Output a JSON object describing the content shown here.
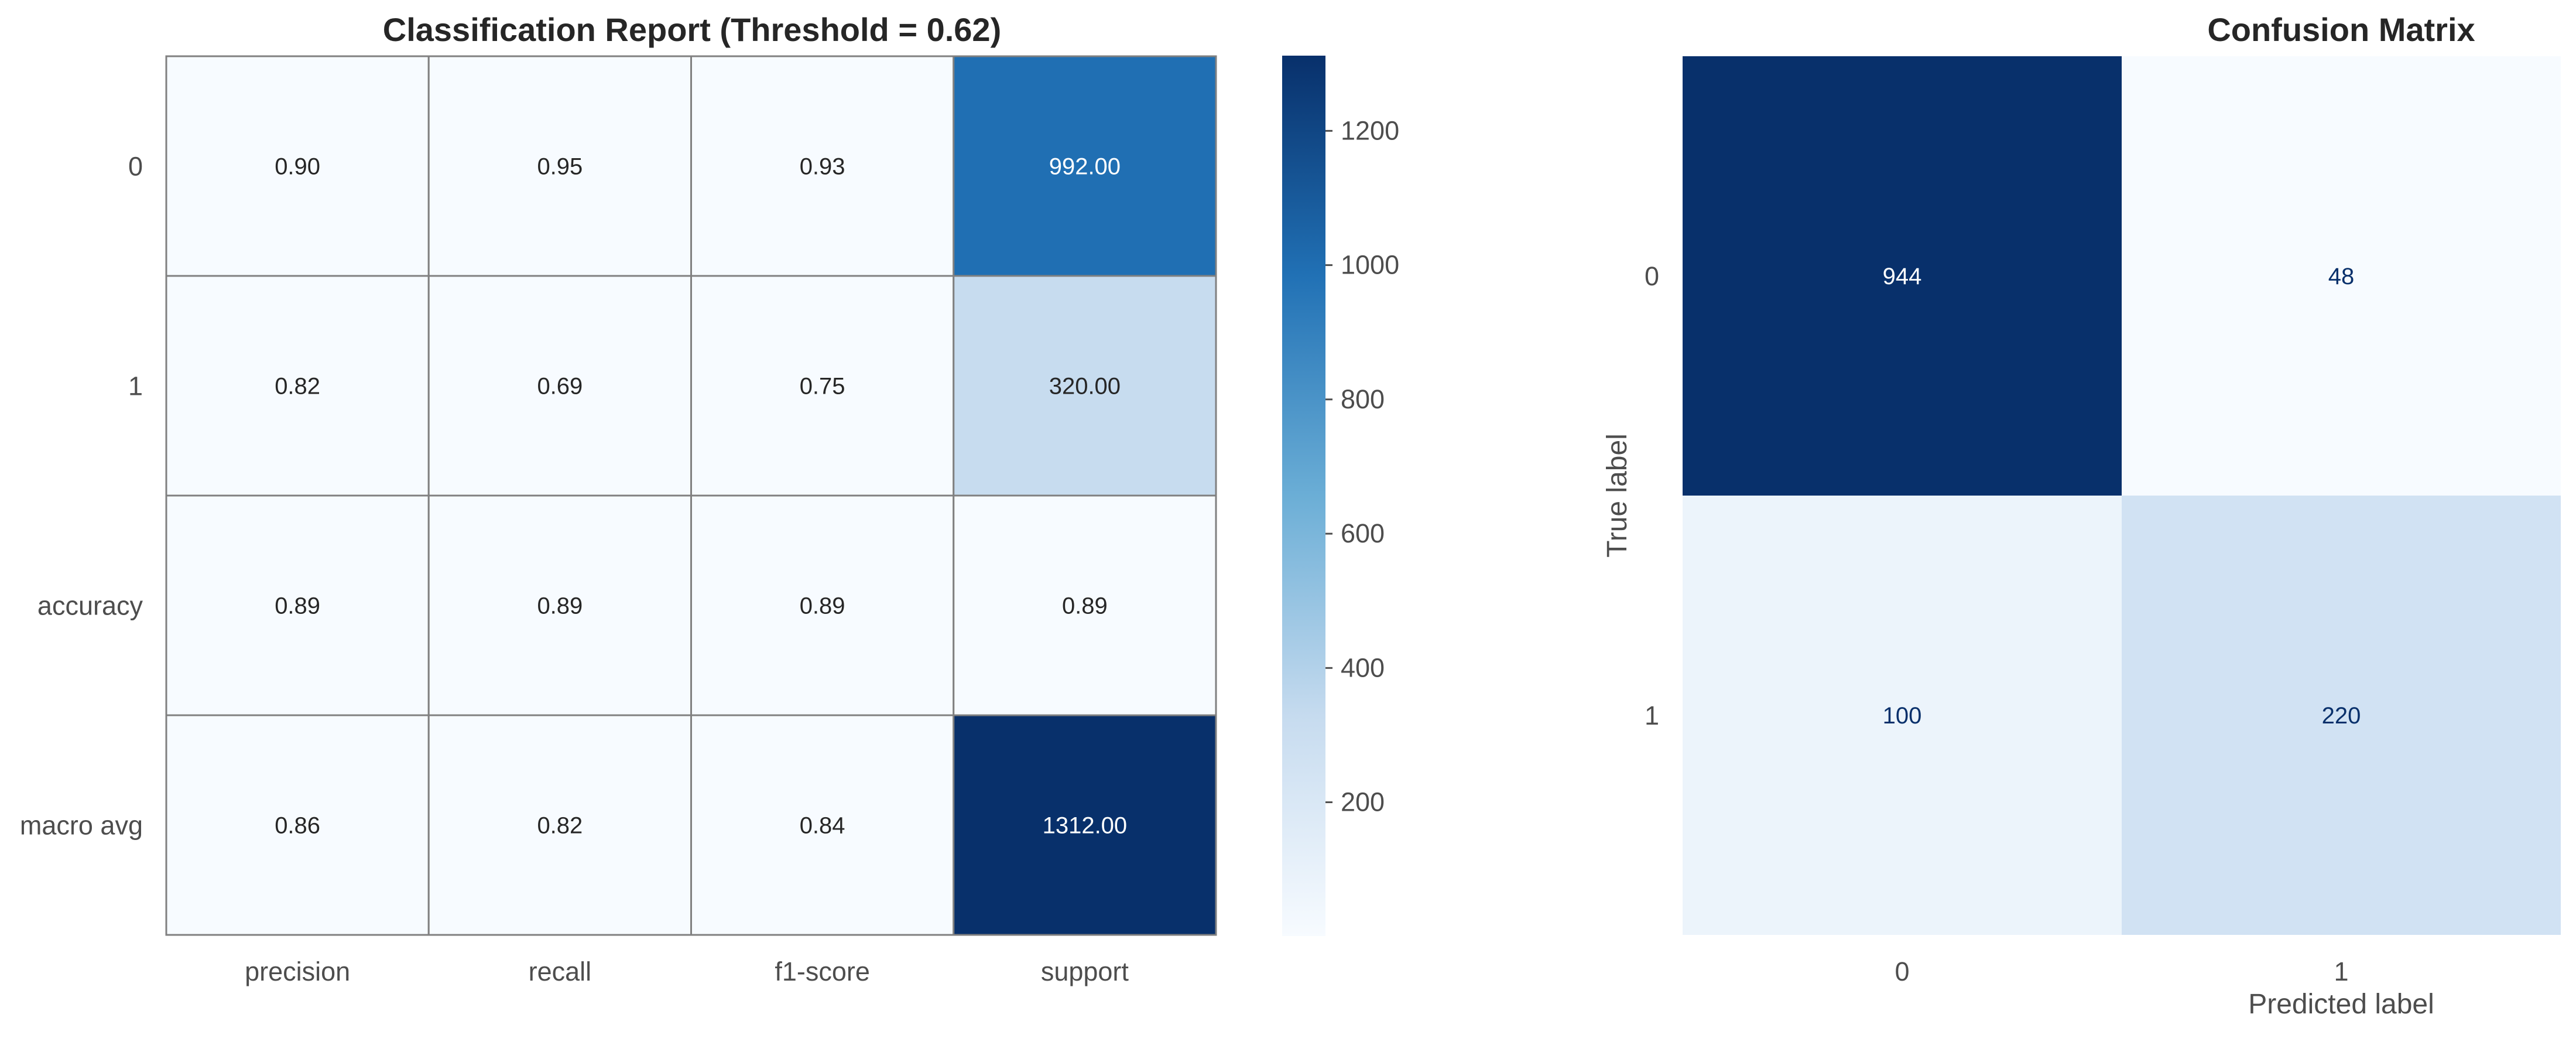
{
  "colors": {
    "cmap_low": "#f7fbff",
    "cmap_mid1": "#c6dbef",
    "cmap_mid2": "#6baed6",
    "cmap_mid3": "#2171b5",
    "cmap_high": "#08306b",
    "cell_border": "#808080",
    "text_dark": "#262626",
    "text_light": "#ffffff"
  },
  "chart_data": [
    {
      "type": "heatmap",
      "title": "Classification Report (Threshold = 0.62)",
      "xlabel": "",
      "ylabel": "",
      "row_labels": [
        "0",
        "1",
        "accuracy",
        "macro avg"
      ],
      "col_labels": [
        "precision",
        "recall",
        "f1-score",
        "support"
      ],
      "values": [
        [
          0.9,
          0.95,
          0.93,
          992.0
        ],
        [
          0.82,
          0.69,
          0.75,
          320.0
        ],
        [
          0.89,
          0.89,
          0.89,
          0.89
        ],
        [
          0.86,
          0.82,
          0.84,
          1312.0
        ]
      ],
      "annotations": [
        [
          "0.90",
          "0.95",
          "0.93",
          "992.00"
        ],
        [
          "0.82",
          "0.69",
          "0.75",
          "320.00"
        ],
        [
          "0.89",
          "0.89",
          "0.89",
          "0.89"
        ],
        [
          "0.86",
          "0.82",
          "0.84",
          "1312.00"
        ]
      ],
      "vmin": 0.69,
      "vmax": 1312.0,
      "colormap": "Blues",
      "grid": false,
      "colorbar": {
        "ticks": [
          200,
          400,
          600,
          800,
          1000,
          1200
        ],
        "tick_labels": [
          "200",
          "400",
          "600",
          "800",
          "1000",
          "1200"
        ],
        "placement": "right"
      }
    },
    {
      "type": "heatmap",
      "title": "Confusion Matrix",
      "xlabel": "Predicted label",
      "ylabel": "True label",
      "row_labels": [
        "0",
        "1"
      ],
      "col_labels": [
        "0",
        "1"
      ],
      "values": [
        [
          944,
          48
        ],
        [
          100,
          220
        ]
      ],
      "annotations": [
        [
          "944",
          "48"
        ],
        [
          "100",
          "220"
        ]
      ],
      "vmin": 48,
      "vmax": 944,
      "colormap": "Blues",
      "grid": false
    }
  ]
}
